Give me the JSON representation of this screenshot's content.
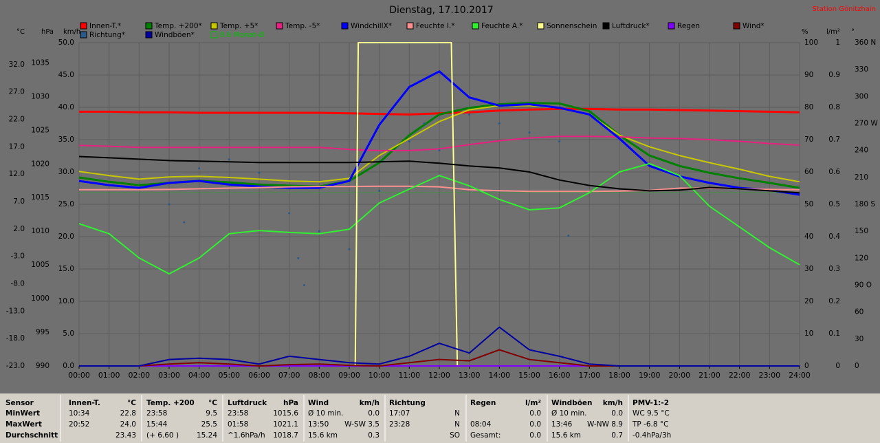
{
  "chart_data": {
    "type": "line",
    "title": "Dienstag, 17.10.2017",
    "station": "Station Gönitzhain",
    "grid": true,
    "x": [
      0,
      1,
      2,
      3,
      4,
      5,
      6,
      7,
      8,
      9,
      10,
      11,
      12,
      13,
      14,
      15,
      16,
      17,
      18,
      19,
      20,
      21,
      22,
      23,
      24
    ],
    "xlim": [
      0,
      24
    ],
    "xticks": [
      {
        "value": 0,
        "label": "00:00"
      },
      {
        "value": 1,
        "label": "01:00"
      },
      {
        "value": 2,
        "label": "02:00"
      },
      {
        "value": 3,
        "label": "03:00"
      },
      {
        "value": 4,
        "label": "04:00"
      },
      {
        "value": 5,
        "label": "05:00"
      },
      {
        "value": 6,
        "label": "06:00"
      },
      {
        "value": 7,
        "label": "07:00"
      },
      {
        "value": 8,
        "label": "08:00"
      },
      {
        "value": 9,
        "label": "09:00"
      },
      {
        "value": 10,
        "label": "10:00"
      },
      {
        "value": 11,
        "label": "11:00"
      },
      {
        "value": 12,
        "label": "12:00"
      },
      {
        "value": 13,
        "label": "13:00"
      },
      {
        "value": 14,
        "label": "14:00"
      },
      {
        "value": 15,
        "label": "15:00"
      },
      {
        "value": 16,
        "label": "16:00"
      },
      {
        "value": 17,
        "label": "17:00"
      },
      {
        "value": 18,
        "label": "18:00"
      },
      {
        "value": 19,
        "label": "19:00"
      },
      {
        "value": 20,
        "label": "20:00"
      },
      {
        "value": 21,
        "label": "21:00"
      },
      {
        "value": 22,
        "label": "22:00"
      },
      {
        "value": 23,
        "label": "23:00"
      },
      {
        "value": 24,
        "label": "24:00"
      }
    ],
    "axes": {
      "c": {
        "label": "°C",
        "side": "left",
        "lim": [
          -23,
          36
        ],
        "ticks": [
          {
            "value": 32,
            "label": "32.0"
          },
          {
            "value": 27,
            "label": "27.0"
          },
          {
            "value": 22,
            "label": "22.0"
          },
          {
            "value": 17,
            "label": "17.0"
          },
          {
            "value": 12,
            "label": "12.0"
          },
          {
            "value": 7,
            "label": "7.0"
          },
          {
            "value": 2,
            "label": "2.0"
          },
          {
            "value": -3,
            "label": "-3.0"
          },
          {
            "value": -8,
            "label": "-8.0"
          },
          {
            "value": -13,
            "label": "-13.0"
          },
          {
            "value": -18,
            "label": "-18.0"
          },
          {
            "value": -23,
            "label": "-23.0"
          }
        ]
      },
      "hpa": {
        "label": "hPa",
        "side": "left",
        "lim": [
          990,
          1038
        ],
        "ticks": [
          1035,
          1030,
          1025,
          1020,
          1015,
          1010,
          1005,
          1000,
          995,
          990
        ]
      },
      "kmh": {
        "label": "km/h",
        "side": "left",
        "lim": [
          0,
          50
        ],
        "ticks": [
          {
            "value": 50,
            "label": "50.0"
          },
          {
            "value": 45,
            "label": "45.0"
          },
          {
            "value": 40,
            "label": "40.0"
          },
          {
            "value": 35,
            "label": "35.0"
          },
          {
            "value": 30,
            "label": "30.0"
          },
          {
            "value": 25,
            "label": "25.0"
          },
          {
            "value": 20,
            "label": "20.0"
          },
          {
            "value": 15,
            "label": "15.0"
          },
          {
            "value": 10,
            "label": "10.0"
          },
          {
            "value": 5,
            "label": "5.0"
          },
          {
            "value": 0,
            "label": "0.0"
          }
        ]
      },
      "pct": {
        "label": "%",
        "side": "right",
        "lim": [
          0,
          100
        ],
        "ticks": [
          100,
          90,
          80,
          70,
          60,
          50,
          40,
          30,
          20,
          10,
          0
        ]
      },
      "lm2": {
        "label": "l/m²",
        "side": "right",
        "lim": [
          0,
          1
        ],
        "ticks": [
          1,
          0.9,
          0.8,
          0.7,
          0.6,
          0.5,
          0.4,
          0.3,
          0.2,
          0.1,
          0
        ]
      },
      "deg": {
        "label": "°",
        "side": "right",
        "lim": [
          0,
          360
        ],
        "ticks": [
          {
            "value": 360,
            "label": "360 N"
          },
          330,
          300,
          {
            "value": 270,
            "label": "270 W"
          },
          240,
          210,
          {
            "value": 180,
            "label": "180 S"
          },
          150,
          120,
          {
            "value": 90,
            "label": "90 O"
          },
          60,
          30,
          0
        ]
      }
    },
    "series": [
      {
        "name": "Innen-T.*",
        "color": "#ff0000",
        "axis": "c",
        "width": 3,
        "values": [
          23.4,
          23.4,
          23.3,
          23.3,
          23.2,
          23.2,
          23.2,
          23.2,
          23.2,
          23.1,
          23.0,
          22.9,
          23.1,
          23.3,
          23.6,
          23.8,
          23.9,
          23.9,
          23.8,
          23.8,
          23.7,
          23.6,
          23.5,
          23.4,
          23.3
        ]
      },
      {
        "name": "Temp. +200*",
        "color": "#008000",
        "axis": "c",
        "width": 3,
        "values": [
          11.4,
          10.6,
          10.0,
          10.4,
          10.8,
          10.5,
          10.1,
          9.9,
          9.75,
          10.75,
          14.1,
          19.1,
          22.9,
          24.1,
          24.75,
          25.0,
          24.9,
          23.5,
          19.1,
          15.4,
          13.5,
          12.25,
          11.25,
          10.4,
          9.5
        ]
      },
      {
        "name": "Temp. +5*",
        "color": "#c8c800",
        "axis": "c",
        "width": 2,
        "values": [
          12.5,
          11.75,
          11.1,
          11.5,
          11.6,
          11.4,
          11.1,
          10.75,
          10.6,
          11.25,
          15.4,
          18.5,
          21.6,
          23.75,
          24.5,
          24.5,
          24.1,
          22.9,
          19.1,
          17.0,
          15.4,
          14.1,
          12.9,
          11.6,
          10.6
        ]
      },
      {
        "name": "Temp. -5*",
        "color": "#e8207f",
        "axis": "c",
        "width": 2,
        "values": [
          17.25,
          17.1,
          16.9,
          16.9,
          16.9,
          16.9,
          16.9,
          16.9,
          16.9,
          16.5,
          16.3,
          16.3,
          16.6,
          17.4,
          18.1,
          18.6,
          18.9,
          18.9,
          18.8,
          18.6,
          18.5,
          18.3,
          18.0,
          17.6,
          17.3
        ]
      },
      {
        "name": "WindchillX*",
        "color": "#0000ff",
        "axis": "c",
        "width": 3,
        "values": [
          10.75,
          10.0,
          9.5,
          10.4,
          10.75,
          10.1,
          9.75,
          9.5,
          9.5,
          10.75,
          21.0,
          27.9,
          30.75,
          26.0,
          24.5,
          24.75,
          24.1,
          22.9,
          18.5,
          13.5,
          11.6,
          10.4,
          9.5,
          9.1,
          8.25
        ]
      },
      {
        "name": "Feuchte I.*",
        "color": "#ff9090",
        "axis": "pct",
        "width": 2,
        "values": [
          54.5,
          54.5,
          54.5,
          54.6,
          54.8,
          55.0,
          55.2,
          55.4,
          55.5,
          55.5,
          55.6,
          55.6,
          55.4,
          54.5,
          54.2,
          54.0,
          54.0,
          54.0,
          54.1,
          54.3,
          55.0,
          55.0,
          54.8,
          54.6,
          54.5
        ]
      },
      {
        "name": "Feuchte A.*",
        "color": "#30f030",
        "axis": "pct",
        "width": 2,
        "values": [
          44.0,
          40.9,
          33.4,
          28.5,
          33.4,
          40.9,
          41.9,
          41.3,
          40.9,
          42.3,
          50.4,
          54.7,
          58.9,
          55.7,
          51.5,
          48.3,
          48.9,
          53.6,
          60.0,
          62.6,
          58.9,
          49.4,
          43.0,
          36.6,
          31.3
        ]
      },
      {
        "name": "Sonnenschein",
        "color": "#ffff90",
        "axis": "pct",
        "width": 2,
        "x": [
          0,
          9.2,
          9.3,
          12.4,
          12.6,
          24
        ],
        "values": [
          0,
          0,
          100,
          100,
          0,
          0
        ]
      },
      {
        "name": "Luftdruck*",
        "color": "#000000",
        "axis": "hpa",
        "width": 2,
        "values": [
          1021.1,
          1020.9,
          1020.7,
          1020.5,
          1020.4,
          1020.3,
          1020.2,
          1020.2,
          1020.2,
          1020.2,
          1020.3,
          1020.4,
          1020.1,
          1019.7,
          1019.4,
          1018.8,
          1017.6,
          1016.8,
          1016.3,
          1016.0,
          1016.1,
          1016.5,
          1016.3,
          1016.0,
          1015.7
        ]
      },
      {
        "name": "Regen",
        "color": "#8000ff",
        "axis": "lm2",
        "width": 2,
        "values": [
          0,
          0,
          0,
          0,
          0,
          0,
          0,
          0,
          0,
          0,
          0,
          0,
          0,
          0,
          0,
          0,
          0,
          0,
          0,
          0,
          0,
          0,
          0,
          0,
          0
        ]
      },
      {
        "name": "Wind*",
        "color": "#800000",
        "axis": "kmh",
        "width": 2,
        "values": [
          0,
          0,
          0,
          0.3,
          0.5,
          0.3,
          0,
          0.2,
          0.3,
          0.1,
          0,
          0.5,
          1.0,
          0.8,
          2.5,
          1.0,
          0.5,
          0,
          0,
          0,
          0,
          0,
          0,
          0,
          0
        ]
      },
      {
        "name": "Richtung*",
        "color": "#2a5a8a",
        "axis": "deg",
        "style": "dots",
        "x": [
          3,
          3.5,
          4,
          5,
          6,
          7,
          7.3,
          7.5,
          8,
          9,
          10,
          11,
          11.5,
          12,
          13,
          14,
          15,
          16,
          16.3
        ],
        "values": [
          180,
          160,
          220,
          230,
          215,
          170,
          120,
          90,
          150,
          130,
          195,
          250,
          270,
          240,
          280,
          270,
          260,
          250,
          145
        ]
      },
      {
        "name": "Windböen*",
        "color": "#0000a0",
        "axis": "kmh",
        "width": 2,
        "values": [
          0,
          0,
          0,
          1.0,
          1.2,
          1.0,
          0.3,
          1.5,
          1.0,
          0.5,
          0.3,
          1.5,
          3.5,
          2.0,
          6.0,
          2.5,
          1.5,
          0.3,
          0,
          0,
          0,
          0,
          0,
          0,
          0
        ]
      }
    ],
    "monthly_avg": {
      "label": "8.6 Monat-Ø",
      "value": 8.6,
      "axis": "c",
      "color": "#00c000"
    }
  },
  "table": {
    "header": [
      "Sensor",
      "Innen-T.",
      "°C",
      "Temp. +200",
      "°C",
      "Luftdruck",
      "hPa",
      "Wind",
      "km/h",
      "Richtung",
      null,
      "Regen",
      "l/m²",
      "Windböen",
      "km/h",
      "PMV-1:-2"
    ],
    "rows": [
      [
        "MinWert",
        "10:34",
        "22.8",
        "23:58",
        "9.5",
        "23:58",
        "1015.6",
        "Ø 10 min.",
        "0.0",
        "17:07",
        "N",
        null,
        "0.0",
        "Ø 10 min.",
        "0.0",
        "WC 9.5 °C"
      ],
      [
        "MaxWert",
        "20:52",
        "24.0",
        "15:44",
        "25.5",
        "01:58",
        "1021.1",
        "13:50",
        "W-SW 3.5",
        "23:28",
        "N",
        "08:04",
        "0.0",
        "13:46",
        "W-NW 8.9",
        "TP -6.8 °C"
      ],
      [
        "Durchschnitt",
        null,
        "23.43",
        "(+ 6.60 )",
        "15.24",
        "^1.6hPa/h",
        "1018.7",
        "15.6 km",
        "0.3",
        null,
        "SO",
        "Gesamt:",
        "0.0",
        "15.6 km",
        "0.7",
        "-0.4hPa/3h"
      ]
    ]
  }
}
